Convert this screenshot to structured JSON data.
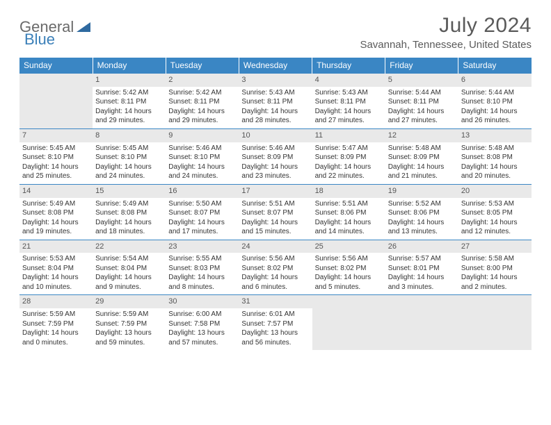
{
  "logo": {
    "part1": "General",
    "part2": "Blue"
  },
  "title": "July 2024",
  "location": "Savannah, Tennessee, United States",
  "header_color": "#3a86c4",
  "daynum_bg": "#e9e9e9",
  "border_color": "#3a86c4",
  "weekdays": [
    "Sunday",
    "Monday",
    "Tuesday",
    "Wednesday",
    "Thursday",
    "Friday",
    "Saturday"
  ],
  "labels": {
    "sunrise": "Sunrise: ",
    "sunset": "Sunset: ",
    "daylight": "Daylight: "
  },
  "weeks": [
    [
      null,
      {
        "n": "1",
        "sunrise": "5:42 AM",
        "sunset": "8:11 PM",
        "daylight": "14 hours and 29 minutes."
      },
      {
        "n": "2",
        "sunrise": "5:42 AM",
        "sunset": "8:11 PM",
        "daylight": "14 hours and 29 minutes."
      },
      {
        "n": "3",
        "sunrise": "5:43 AM",
        "sunset": "8:11 PM",
        "daylight": "14 hours and 28 minutes."
      },
      {
        "n": "4",
        "sunrise": "5:43 AM",
        "sunset": "8:11 PM",
        "daylight": "14 hours and 27 minutes."
      },
      {
        "n": "5",
        "sunrise": "5:44 AM",
        "sunset": "8:11 PM",
        "daylight": "14 hours and 27 minutes."
      },
      {
        "n": "6",
        "sunrise": "5:44 AM",
        "sunset": "8:10 PM",
        "daylight": "14 hours and 26 minutes."
      }
    ],
    [
      {
        "n": "7",
        "sunrise": "5:45 AM",
        "sunset": "8:10 PM",
        "daylight": "14 hours and 25 minutes."
      },
      {
        "n": "8",
        "sunrise": "5:45 AM",
        "sunset": "8:10 PM",
        "daylight": "14 hours and 24 minutes."
      },
      {
        "n": "9",
        "sunrise": "5:46 AM",
        "sunset": "8:10 PM",
        "daylight": "14 hours and 24 minutes."
      },
      {
        "n": "10",
        "sunrise": "5:46 AM",
        "sunset": "8:09 PM",
        "daylight": "14 hours and 23 minutes."
      },
      {
        "n": "11",
        "sunrise": "5:47 AM",
        "sunset": "8:09 PM",
        "daylight": "14 hours and 22 minutes."
      },
      {
        "n": "12",
        "sunrise": "5:48 AM",
        "sunset": "8:09 PM",
        "daylight": "14 hours and 21 minutes."
      },
      {
        "n": "13",
        "sunrise": "5:48 AM",
        "sunset": "8:08 PM",
        "daylight": "14 hours and 20 minutes."
      }
    ],
    [
      {
        "n": "14",
        "sunrise": "5:49 AM",
        "sunset": "8:08 PM",
        "daylight": "14 hours and 19 minutes."
      },
      {
        "n": "15",
        "sunrise": "5:49 AM",
        "sunset": "8:08 PM",
        "daylight": "14 hours and 18 minutes."
      },
      {
        "n": "16",
        "sunrise": "5:50 AM",
        "sunset": "8:07 PM",
        "daylight": "14 hours and 17 minutes."
      },
      {
        "n": "17",
        "sunrise": "5:51 AM",
        "sunset": "8:07 PM",
        "daylight": "14 hours and 15 minutes."
      },
      {
        "n": "18",
        "sunrise": "5:51 AM",
        "sunset": "8:06 PM",
        "daylight": "14 hours and 14 minutes."
      },
      {
        "n": "19",
        "sunrise": "5:52 AM",
        "sunset": "8:06 PM",
        "daylight": "14 hours and 13 minutes."
      },
      {
        "n": "20",
        "sunrise": "5:53 AM",
        "sunset": "8:05 PM",
        "daylight": "14 hours and 12 minutes."
      }
    ],
    [
      {
        "n": "21",
        "sunrise": "5:53 AM",
        "sunset": "8:04 PM",
        "daylight": "14 hours and 10 minutes."
      },
      {
        "n": "22",
        "sunrise": "5:54 AM",
        "sunset": "8:04 PM",
        "daylight": "14 hours and 9 minutes."
      },
      {
        "n": "23",
        "sunrise": "5:55 AM",
        "sunset": "8:03 PM",
        "daylight": "14 hours and 8 minutes."
      },
      {
        "n": "24",
        "sunrise": "5:56 AM",
        "sunset": "8:02 PM",
        "daylight": "14 hours and 6 minutes."
      },
      {
        "n": "25",
        "sunrise": "5:56 AM",
        "sunset": "8:02 PM",
        "daylight": "14 hours and 5 minutes."
      },
      {
        "n": "26",
        "sunrise": "5:57 AM",
        "sunset": "8:01 PM",
        "daylight": "14 hours and 3 minutes."
      },
      {
        "n": "27",
        "sunrise": "5:58 AM",
        "sunset": "8:00 PM",
        "daylight": "14 hours and 2 minutes."
      }
    ],
    [
      {
        "n": "28",
        "sunrise": "5:59 AM",
        "sunset": "7:59 PM",
        "daylight": "14 hours and 0 minutes."
      },
      {
        "n": "29",
        "sunrise": "5:59 AM",
        "sunset": "7:59 PM",
        "daylight": "13 hours and 59 minutes."
      },
      {
        "n": "30",
        "sunrise": "6:00 AM",
        "sunset": "7:58 PM",
        "daylight": "13 hours and 57 minutes."
      },
      {
        "n": "31",
        "sunrise": "6:01 AM",
        "sunset": "7:57 PM",
        "daylight": "13 hours and 56 minutes."
      },
      null,
      null,
      null
    ]
  ]
}
